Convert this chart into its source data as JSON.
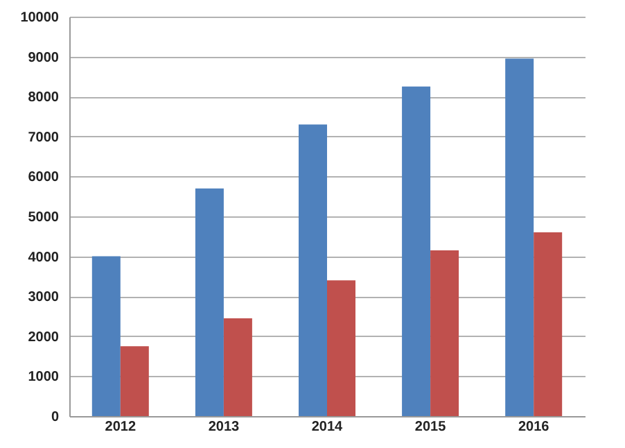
{
  "chart_data": {
    "type": "bar",
    "categories": [
      "2012",
      "2013",
      "2014",
      "2015",
      "2016"
    ],
    "series": [
      {
        "color": "#4f81bd",
        "values": [
          4000,
          5700,
          7300,
          8250,
          8950
        ]
      },
      {
        "color": "#c0504d",
        "values": [
          1750,
          2450,
          3400,
          4150,
          4600
        ]
      }
    ],
    "ylim": [
      0,
      10000
    ],
    "yticks": [
      0,
      1000,
      2000,
      3000,
      4000,
      5000,
      6000,
      7000,
      8000,
      9000,
      10000
    ],
    "grid": "y"
  }
}
